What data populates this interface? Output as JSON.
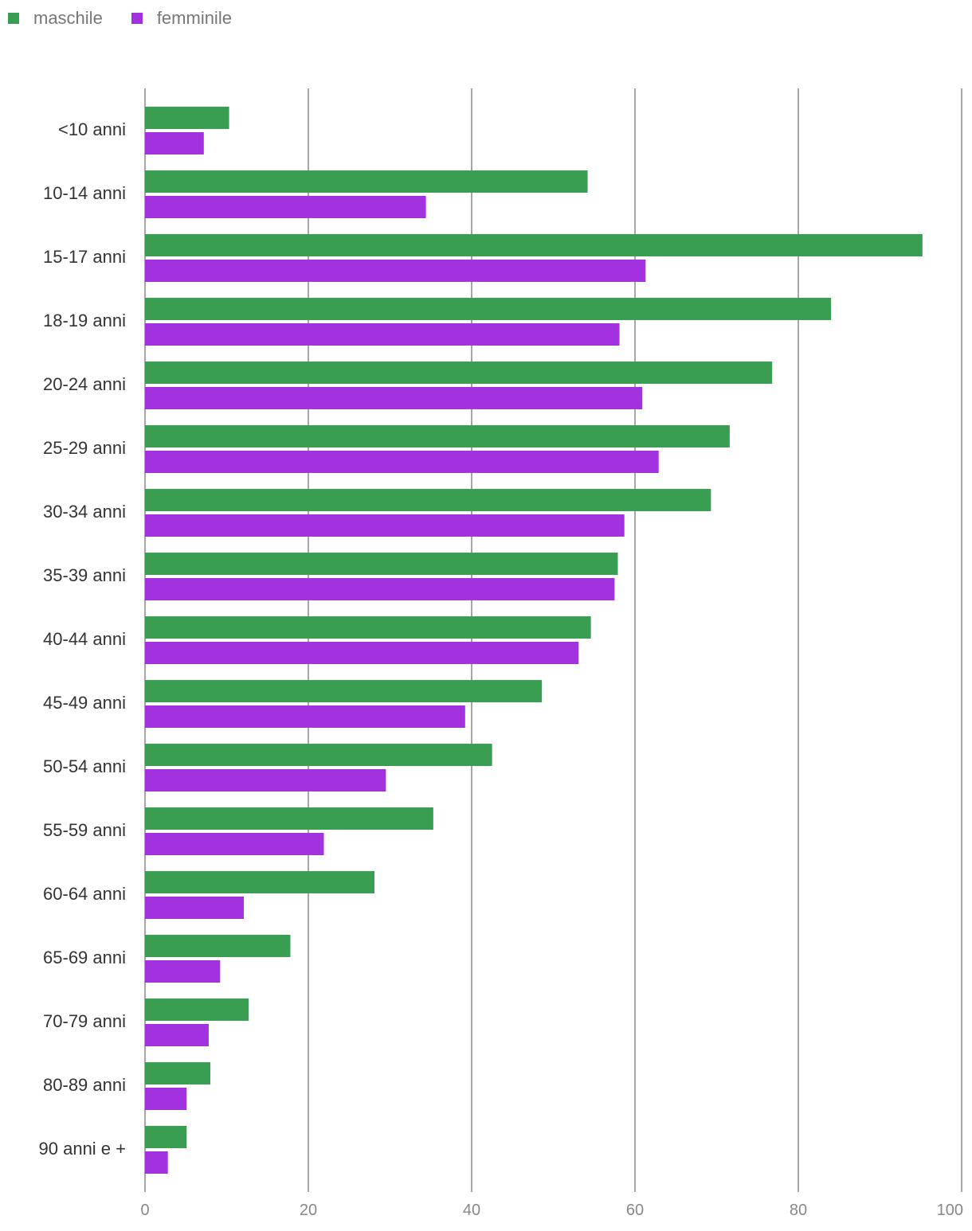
{
  "colors": {
    "male": "#3a9e52",
    "female": "#a232e0",
    "grid": "#8a8a8a"
  },
  "chart_data": {
    "type": "bar",
    "orientation": "horizontal",
    "title": "",
    "xlabel": "",
    "ylabel": "",
    "xlim": [
      0,
      100
    ],
    "xticks": [
      0,
      20,
      40,
      60,
      80,
      100
    ],
    "grid": true,
    "legend_position": "top-left",
    "categories": [
      "<10 anni",
      "10-14 anni",
      "15-17 anni",
      "18-19 anni",
      "20-24 anni",
      "25-29 anni",
      "30-34 anni",
      "35-39 anni",
      "40-44 anni",
      "45-49 anni",
      "50-54 anni",
      "55-59 anni",
      "60-64 anni",
      "65-69 anni",
      "70-79 anni",
      "80-89 anni",
      "90 anni e +"
    ],
    "series": [
      {
        "name": "maschile",
        "key": "male",
        "values": [
          10.3,
          54.2,
          95.2,
          84.0,
          76.8,
          71.6,
          69.3,
          57.9,
          54.6,
          48.6,
          42.5,
          35.3,
          28.1,
          17.8,
          12.7,
          8.0,
          5.1
        ]
      },
      {
        "name": "femminile",
        "key": "female",
        "values": [
          7.2,
          34.4,
          61.3,
          58.1,
          60.9,
          62.9,
          58.7,
          57.5,
          53.1,
          39.2,
          29.5,
          21.9,
          12.1,
          9.2,
          7.8,
          5.1,
          2.8
        ]
      }
    ]
  }
}
